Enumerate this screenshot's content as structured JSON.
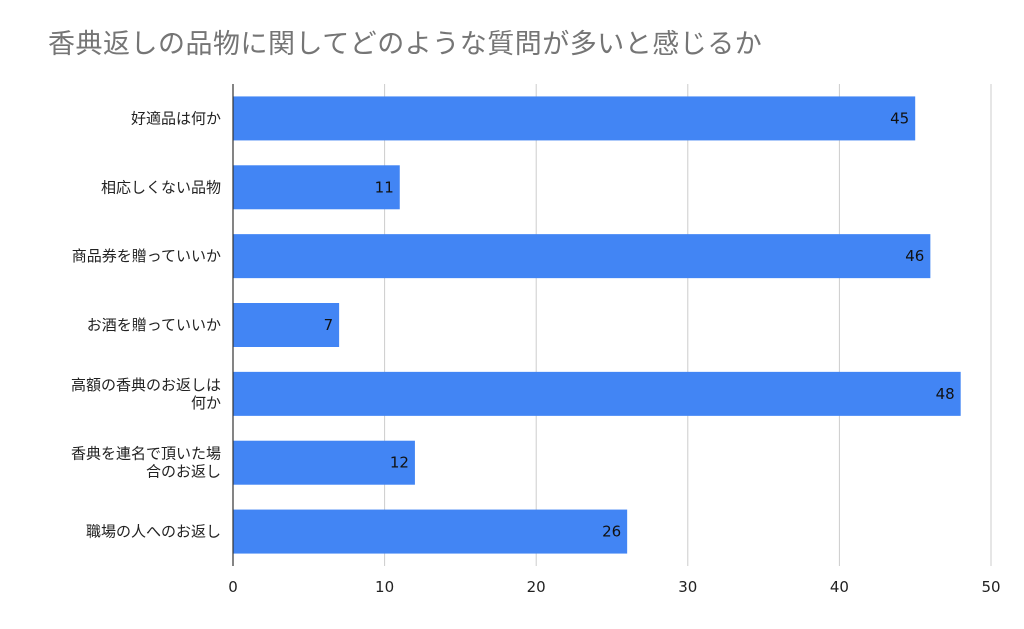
{
  "chart_data": {
    "type": "bar",
    "orientation": "horizontal",
    "title": "香典返しの品物に関してどのような質問が多いと感じるか",
    "categories": [
      [
        "好適品は何か"
      ],
      [
        "相応しくない品物"
      ],
      [
        "商品券を贈っていいか"
      ],
      [
        "お酒を贈っていいか"
      ],
      [
        "高額の香典のお返しは",
        "何か"
      ],
      [
        "香典を連名で頂いた場",
        "合のお返し"
      ],
      [
        "職場の人へのお返し"
      ]
    ],
    "values": [
      45,
      11,
      46,
      7,
      48,
      12,
      26
    ],
    "xlim": [
      0,
      50
    ],
    "xticks": [
      0,
      10,
      20,
      30,
      40,
      50
    ],
    "grid": true,
    "bar_color": "#4285f4",
    "xlabel": "",
    "ylabel": ""
  }
}
